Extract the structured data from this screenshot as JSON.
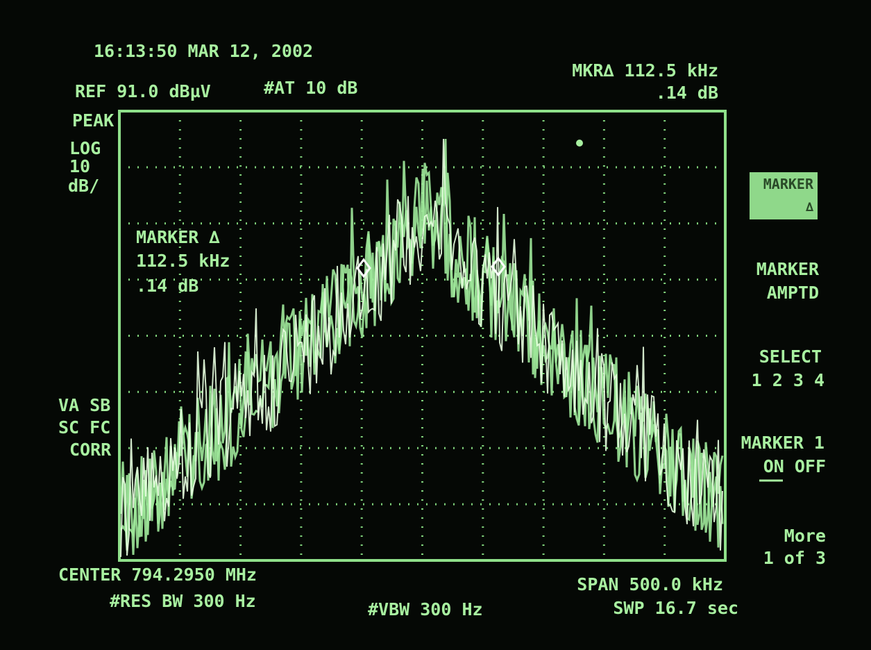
{
  "header": {
    "timestamp": "16:13:50 MAR 12, 2002",
    "ref_level": "REF 91.0 dBµV",
    "attenuation": "#AT 10 dB",
    "marker_readout": "MKR∆ 112.5 kHz",
    "marker_amplitude": ".14 dB"
  },
  "left_panel": {
    "detector": "PEAK",
    "scale": [
      "LOG",
      "10",
      "dB/"
    ],
    "flags": [
      "VA SB",
      "SC FC",
      "CORR"
    ]
  },
  "marker_box": [
    "MARKER ∆",
    "112.5 kHz",
    ".14 dB"
  ],
  "softkeys": [
    {
      "lines": [
        "MARKER",
        "∆"
      ]
    },
    {
      "lines": [
        "MARKER",
        "AMPTD"
      ]
    },
    {
      "lines": [
        "SELECT",
        "1 2 3 4"
      ]
    },
    {
      "lines": [
        "MARKER 1",
        "ON OFF"
      ]
    },
    {
      "lines": [
        "More",
        "1 of 3"
      ]
    }
  ],
  "footer": {
    "center": "CENTER 794.2950 MHz",
    "res_bw": "#RES BW 300 Hz",
    "vbw": "#VBW 300 Hz",
    "span": "SPAN 500.0 kHz",
    "sweep": "SWP 16.7 sec"
  }
}
